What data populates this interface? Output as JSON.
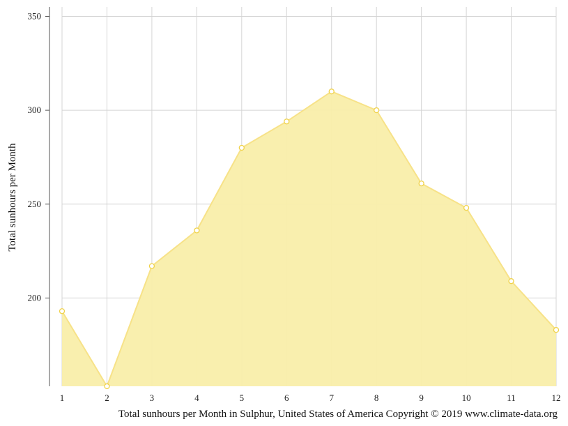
{
  "chart_data": {
    "type": "area",
    "title": "",
    "xlabel": "",
    "ylabel": "Total sunhours per Month",
    "caption": "Total sunhours per Month in Sulphur, United States of America Copyright © 2019 www.climate-data.org",
    "x": [
      1,
      2,
      3,
      4,
      5,
      6,
      7,
      8,
      9,
      10,
      11,
      12
    ],
    "xticks": [
      "1",
      "2",
      "3",
      "4",
      "5",
      "6",
      "7",
      "8",
      "9",
      "10",
      "11",
      "12"
    ],
    "series": [
      {
        "values": [
          193,
          153,
          217,
          236,
          280,
          294,
          310,
          300,
          261,
          248,
          209,
          183
        ]
      }
    ],
    "ylim": [
      153,
      355
    ],
    "yticks": [
      200,
      250,
      300,
      350
    ],
    "grid": true,
    "colors": {
      "fill": "#f9eeaa",
      "line": "#f7e288",
      "marker_stroke": "#f0d24a",
      "marker_fill": "#ffffff"
    }
  }
}
